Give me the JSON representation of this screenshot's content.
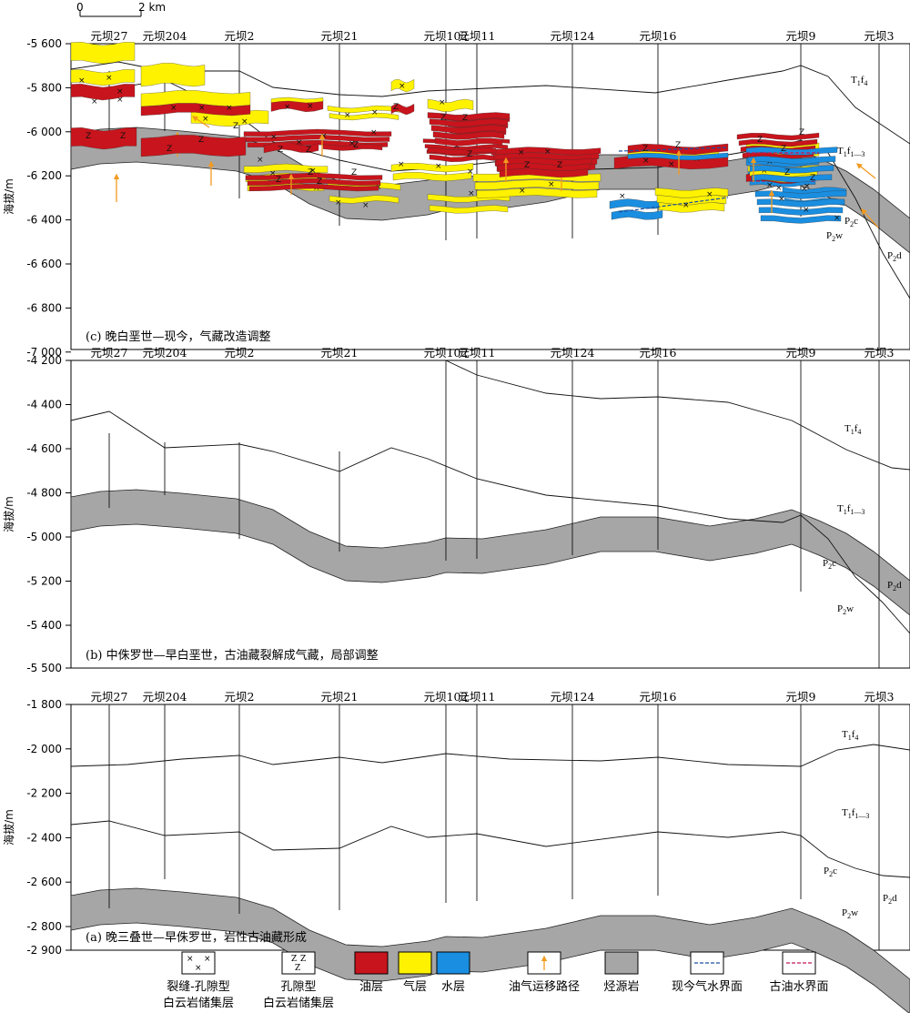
{
  "scale": {
    "zero": "0",
    "label": "2 km"
  },
  "wells": [
    "元坝27",
    "元坝204",
    "元坝2",
    "元坝21",
    "元坝102",
    "元坝11",
    "元坝124",
    "元坝16",
    "元坝9",
    "元坝3"
  ],
  "axis_title": "海拔/m",
  "panels": [
    {
      "id": "c",
      "caption": "(c) 晚白垩世—现今，气藏改造调整",
      "ticks": [
        "-5 600",
        "-5 800",
        "-6 000",
        "-6 200",
        "-6 400",
        "-6 600",
        "-6 800",
        "-7 000"
      ],
      "form_labels": [
        {
          "main": "T",
          "sub": "1",
          "main2": "f",
          "sub2": "4"
        },
        {
          "main": "T",
          "sub": "1",
          "main2": "f",
          "sub2": "1—3"
        },
        {
          "main": "P",
          "sub": "2",
          "main2": "c",
          "sub2": ""
        },
        {
          "main": "P",
          "sub": "2",
          "main2": "w",
          "sub2": ""
        },
        {
          "main": "P",
          "sub": "2",
          "main2": "d",
          "sub2": ""
        }
      ]
    },
    {
      "id": "b",
      "caption": "(b) 中侏罗世—早白垩世，古油藏裂解成气藏，局部调整",
      "ticks": [
        "-4 200",
        "-4 400",
        "-4 600",
        "-4 800",
        "-5 000",
        "-5 200",
        "-5 400",
        "-5 500"
      ],
      "form_labels": [
        {
          "main": "T",
          "sub": "1",
          "main2": "f",
          "sub2": "4"
        },
        {
          "main": "T",
          "sub": "1",
          "main2": "f",
          "sub2": "1—3"
        },
        {
          "main": "P",
          "sub": "2",
          "main2": "c",
          "sub2": ""
        },
        {
          "main": "P",
          "sub": "2",
          "main2": "d",
          "sub2": ""
        },
        {
          "main": "P",
          "sub": "2",
          "main2": "w",
          "sub2": ""
        }
      ]
    },
    {
      "id": "a",
      "caption": "(a) 晚三叠世—早侏罗世，岩性古油藏形成",
      "ticks": [
        "-1 800",
        "-2 000",
        "-2 200",
        "-2 400",
        "-2 600",
        "-2 800",
        "-2 900"
      ],
      "form_labels": [
        {
          "main": "T",
          "sub": "1",
          "main2": "f",
          "sub2": "4"
        },
        {
          "main": "T",
          "sub": "1",
          "main2": "f",
          "sub2": "1—3"
        },
        {
          "main": "P",
          "sub": "2",
          "main2": "c",
          "sub2": ""
        },
        {
          "main": "P",
          "sub": "2",
          "main2": "d",
          "sub2": ""
        },
        {
          "main": "P",
          "sub": "2",
          "main2": "w",
          "sub2": ""
        }
      ]
    }
  ],
  "legend": [
    {
      "key": "fracture",
      "line1": "裂缝-孔隙型",
      "line2": "白云岩储集层"
    },
    {
      "key": "pore",
      "line1": "孔隙型",
      "line2": "白云岩储集层"
    },
    {
      "key": "oil",
      "line1": "油层",
      "line2": ""
    },
    {
      "key": "gas",
      "line1": "气层",
      "line2": ""
    },
    {
      "key": "water",
      "line1": "水层",
      "line2": ""
    },
    {
      "key": "migration",
      "line1": "油气运移路径",
      "line2": ""
    },
    {
      "key": "source",
      "line1": "烃源岩",
      "line2": ""
    },
    {
      "key": "gwc",
      "line1": "现今气水界面",
      "line2": ""
    },
    {
      "key": "owc",
      "line1": "古油水界面",
      "line2": ""
    }
  ],
  "colors": {
    "oil": "#c8141c",
    "gas": "#fff200",
    "water": "#1a8ee0",
    "source": "#a6a6a6",
    "arrow": "#f39a1e",
    "gwc": "#1a4fa0",
    "owc": "#c0185a"
  }
}
